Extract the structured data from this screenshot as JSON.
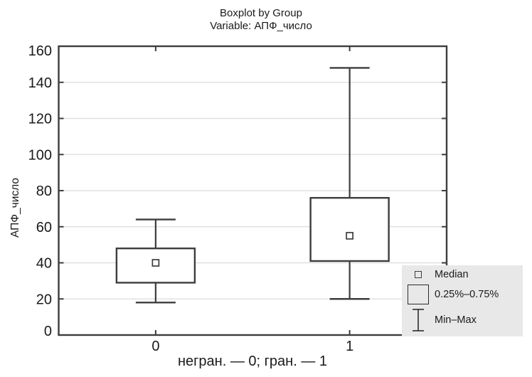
{
  "chart_data": {
    "type": "boxplot",
    "title": "Boxplot by Group",
    "subtitle": "Variable: АПФ_число",
    "ylabel": "АПФ_число",
    "xlabel": "негран. — 0; гран. — 1",
    "ylim": [
      0,
      160
    ],
    "yticks": [
      0,
      20,
      40,
      60,
      80,
      100,
      120,
      140,
      160
    ],
    "grid": "horizontal-light",
    "categories": [
      "0",
      "1"
    ],
    "groups": [
      {
        "label": "0",
        "min": 18,
        "q1": 29,
        "median": 40,
        "q3": 48,
        "max": 64
      },
      {
        "label": "1",
        "min": 20,
        "q1": 41,
        "median": 55,
        "q3": 76,
        "max": 148
      }
    ],
    "legend": {
      "position": "bottom-right",
      "entries": [
        {
          "icon": "median-square-icon",
          "label": "Median"
        },
        {
          "icon": "iqr-box-icon",
          "label": "0.25%–0.75%"
        },
        {
          "icon": "min-max-whisker-icon",
          "label": "Min–Max"
        }
      ]
    },
    "colors": {
      "line": "#3d3d3d",
      "grid": "#dcdcdc",
      "legend_bg": "#e8e8e8",
      "background": "#ffffff",
      "text": "#1a1a1a",
      "box_fill": "#ffffff"
    }
  }
}
